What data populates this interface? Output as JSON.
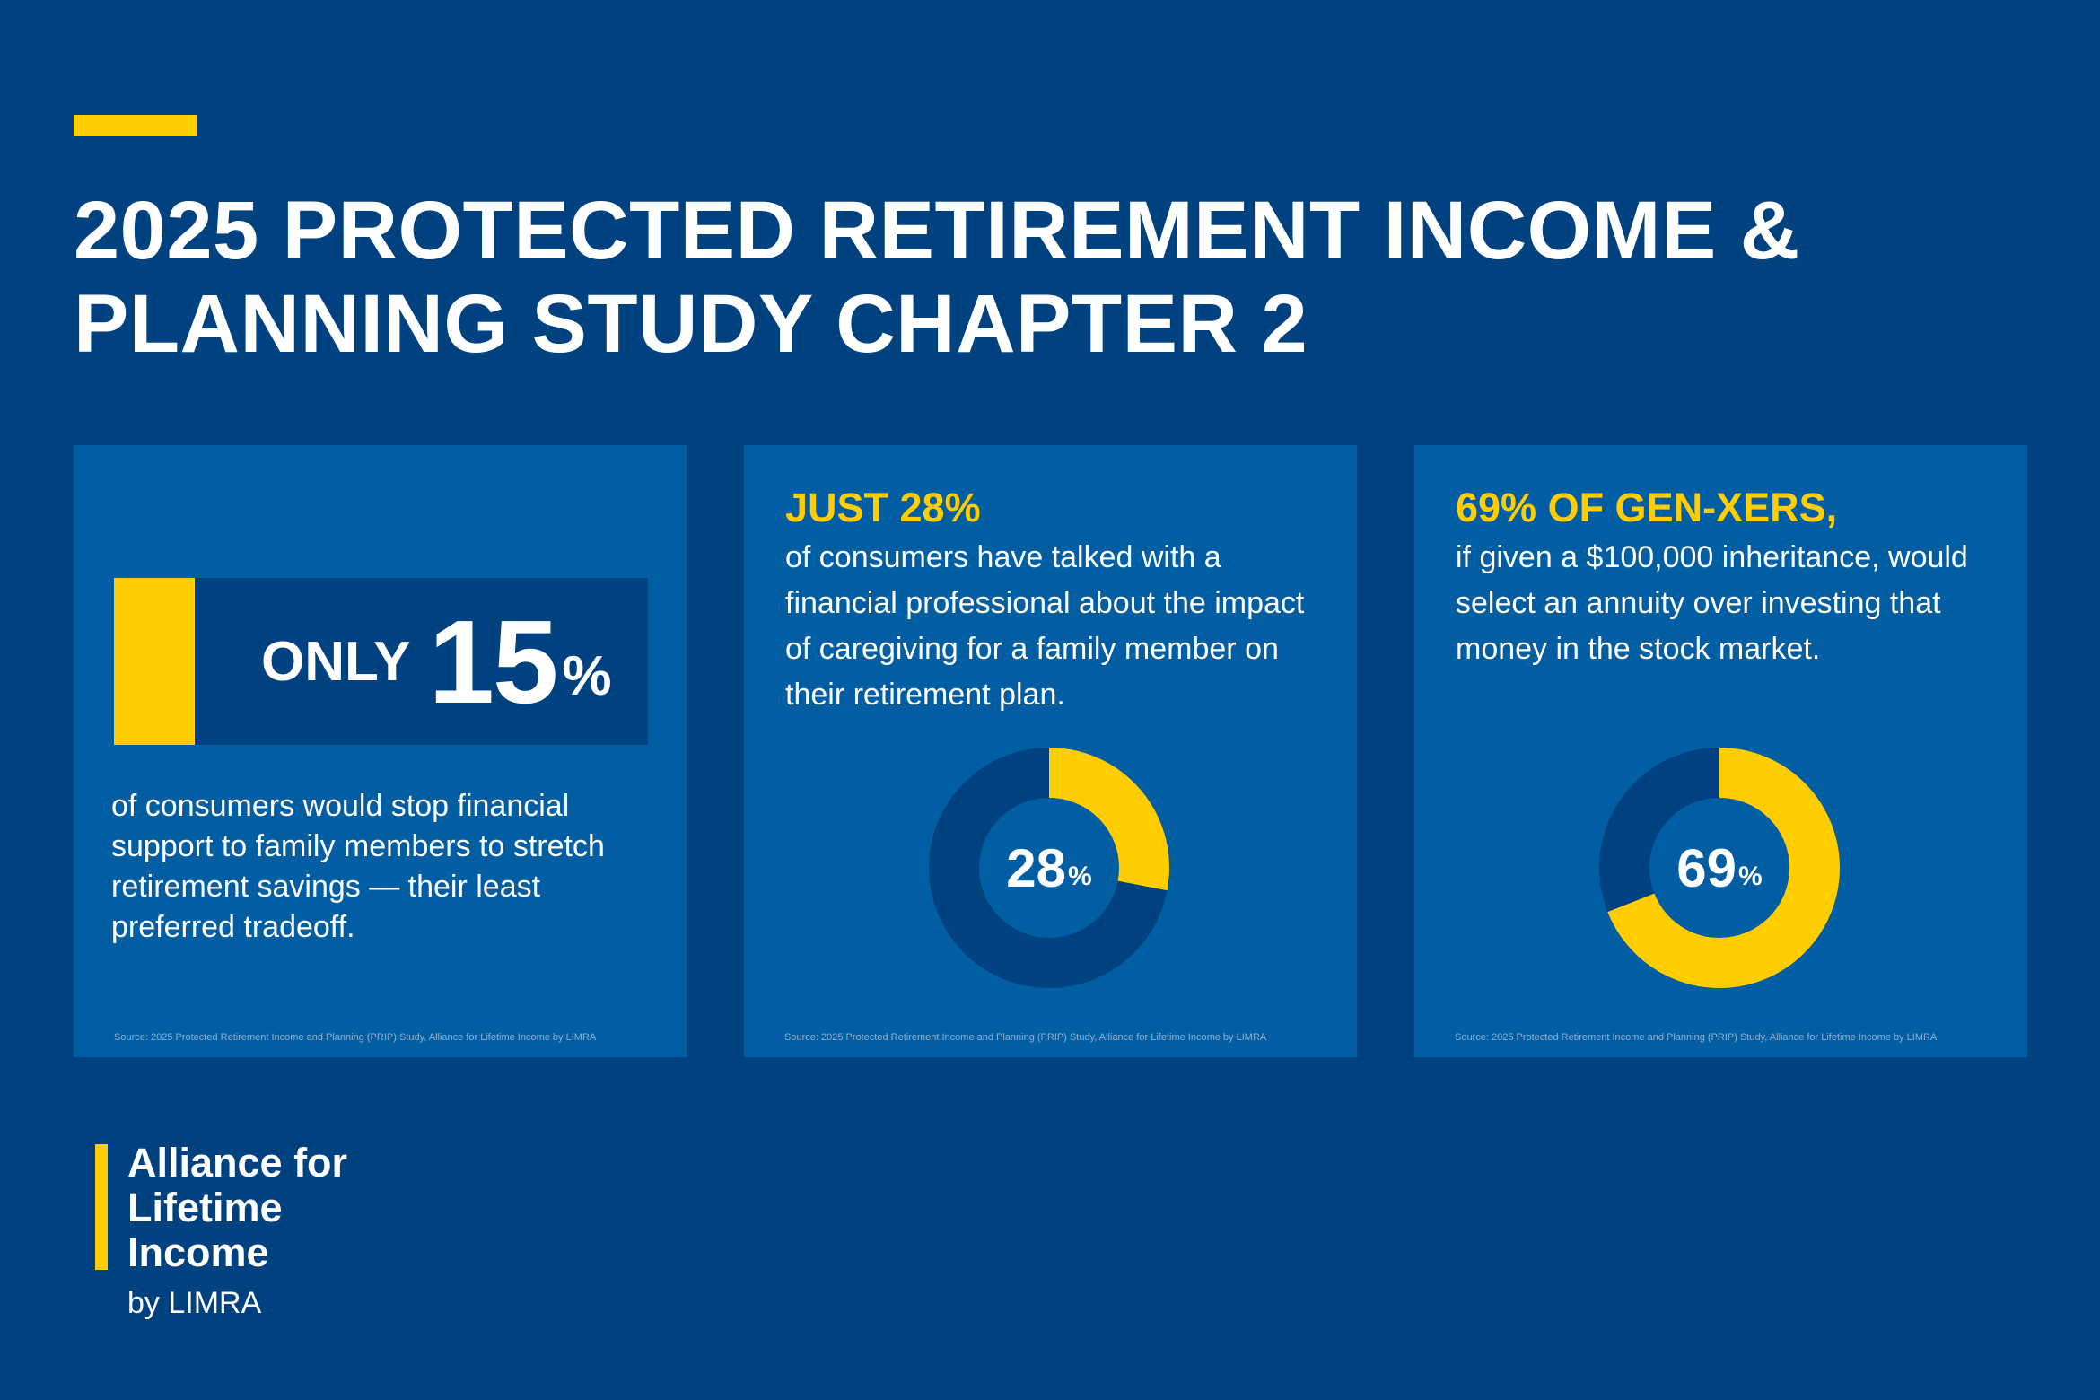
{
  "title": "2025 PROTECTED RETIREMENT INCOME & PLANNING STUDY CHAPTER 2",
  "colors": {
    "background": "#00427f",
    "card": "#025ea3",
    "accent": "#ffcd00"
  },
  "cards": [
    {
      "only_word": "ONLY",
      "number": "15",
      "percent_sign": "%",
      "body": "of consumers would stop financial support to family members to stretch retirement savings — their least preferred tradeoff.",
      "source": "Source: 2025 Protected Retirement Income and Planning (PRIP) Study, Alliance for Lifetime Income by LIMRA"
    },
    {
      "headline": "JUST 28%",
      "body": "of consumers have talked with a financial professional about the impact of caregiving for a family member on their retirement plan.",
      "donut_value": 28,
      "donut_number": "28",
      "percent_sign": "%",
      "source": "Source: 2025 Protected Retirement Income and Planning (PRIP) Study, Alliance for Lifetime Income by LIMRA"
    },
    {
      "headline": "69% OF GEN-XERS,",
      "body": "if given a $100,000 inheritance, would select an annuity over investing that money in the stock market.",
      "donut_value": 69,
      "donut_number": "69",
      "percent_sign": "%",
      "source": "Source: 2025 Protected Retirement Income and Planning (PRIP) Study, Alliance for Lifetime Income by LIMRA"
    }
  ],
  "logo": {
    "line1": "Alliance for",
    "line2": "Lifetime",
    "line3": "Income",
    "byline": "by LIMRA"
  }
}
